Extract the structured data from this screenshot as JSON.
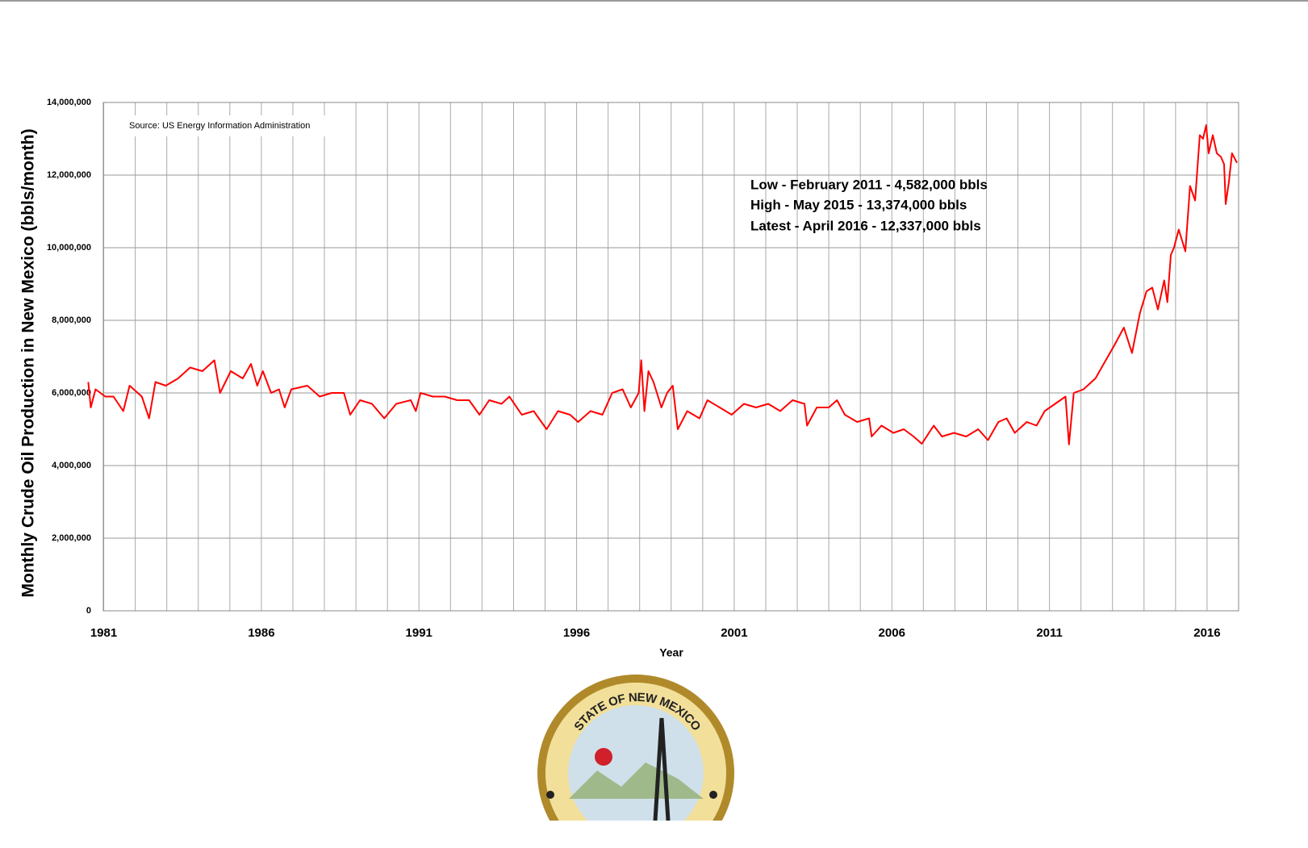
{
  "chart_data": {
    "type": "line",
    "y_label": "Monthly Crude Oil Production in New Mexico (bbls/month)",
    "x_label": "Year",
    "source": "Source: US Energy Information Administration",
    "annotations": [
      "Low - February 2011 - 4,582,000 bbls",
      "High - May 2015 - 13,374,000 bbls",
      "Latest - April 2016 - 12,337,000 bbls"
    ],
    "logo_text": "STATE OF NEW MEXICO",
    "color": "#ff0000",
    "grid": true,
    "xlim": [
      1980.5,
      2017
    ],
    "ylim": [
      0,
      14000000
    ],
    "xticks": [
      1981,
      1986,
      1991,
      1996,
      2001,
      2006,
      2011,
      2016
    ],
    "xgrid": [
      1981,
      1982,
      1983,
      1984,
      1985,
      1986,
      1987,
      1988,
      1989,
      1990,
      1991,
      1992,
      1993,
      1994,
      1995,
      1996,
      1997,
      1998,
      1999,
      2000,
      2001,
      2002,
      2003,
      2004,
      2005,
      2006,
      2007,
      2008,
      2009,
      2010,
      2011,
      2012,
      2013,
      2014,
      2015,
      2016,
      2017
    ],
    "yticks": [
      0,
      {
        "value": 2000000,
        "label": "2,000,000"
      },
      {
        "value": 4000000,
        "label": "4,000,000"
      },
      {
        "value": 6000000,
        "label": "6,000,000"
      },
      {
        "value": 8000000,
        "label": "8,000,000"
      },
      {
        "value": 10000000,
        "label": "10,000,000"
      },
      {
        "value": 12000000,
        "label": "12,000,000"
      },
      {
        "value": 14000000,
        "label": "14,000,000"
      }
    ],
    "x": [
      1980.51,
      1980.59,
      1980.74,
      1981.05,
      1981.31,
      1981.62,
      1981.82,
      1982.21,
      1982.44,
      1982.64,
      1982.97,
      1983.36,
      1983.74,
      1984.13,
      1984.51,
      1984.69,
      1985.03,
      1985.41,
      1985.67,
      1985.87,
      1986.05,
      1986.31,
      1986.56,
      1986.74,
      1986.95,
      1987.46,
      1987.85,
      1988.23,
      1988.62,
      1988.82,
      1989.13,
      1989.51,
      1989.9,
      1990.28,
      1990.74,
      1990.9,
      1991.05,
      1991.44,
      1991.82,
      1992.21,
      1992.59,
      1992.92,
      1993.23,
      1993.62,
      1993.87,
      1994.26,
      1994.64,
      1995.05,
      1995.41,
      1995.79,
      1996.05,
      1996.44,
      1996.82,
      1997.13,
      1997.46,
      1997.72,
      1997.97,
      1998.05,
      1998.15,
      1998.28,
      1998.44,
      1998.69,
      1998.87,
      1999.05,
      1999.21,
      1999.51,
      1999.9,
      2000.15,
      2000.54,
      2000.92,
      2001.31,
      2001.69,
      2002.08,
      2002.46,
      2002.85,
      2003.23,
      2003.31,
      2003.62,
      2004.0,
      2004.26,
      2004.51,
      2004.9,
      2005.28,
      2005.36,
      2005.67,
      2006.05,
      2006.38,
      2006.69,
      2006.95,
      2007.33,
      2007.59,
      2007.97,
      2008.36,
      2008.74,
      2009.05,
      2009.38,
      2009.64,
      2009.9,
      2010.28,
      2010.59,
      2010.85,
      2011.18,
      2011.51,
      2011.62,
      2011.77,
      2012.08,
      2012.46,
      2012.72,
      2013.05,
      2013.36,
      2013.62,
      2013.87,
      2014.08,
      2014.26,
      2014.44,
      2014.64,
      2014.74,
      2014.85,
      2014.95,
      2015.1,
      2015.31,
      2015.46,
      2015.62,
      2015.77,
      2015.87,
      2015.97,
      2016.05,
      2016.18,
      2016.31,
      2016.44,
      2016.54,
      2016.59,
      2016.69,
      2016.79,
      2016.95
    ],
    "values": [
      6300000,
      5600000,
      6100000,
      5900000,
      5900000,
      5500000,
      6200000,
      5900000,
      5300000,
      6300000,
      6200000,
      6400000,
      6700000,
      6600000,
      6900000,
      6000000,
      6600000,
      6400000,
      6800000,
      6200000,
      6600000,
      6000000,
      6100000,
      5600000,
      6100000,
      6200000,
      5900000,
      6000000,
      6000000,
      5400000,
      5800000,
      5700000,
      5300000,
      5700000,
      5800000,
      5500000,
      6000000,
      5900000,
      5900000,
      5800000,
      5800000,
      5400000,
      5800000,
      5700000,
      5900000,
      5400000,
      5500000,
      5000000,
      5500000,
      5400000,
      5200000,
      5500000,
      5400000,
      6000000,
      6100000,
      5600000,
      6000000,
      6900000,
      5500000,
      6600000,
      6300000,
      5600000,
      6000000,
      6200000,
      5000000,
      5500000,
      5300000,
      5800000,
      5600000,
      5400000,
      5700000,
      5600000,
      5700000,
      5500000,
      5800000,
      5700000,
      5100000,
      5600000,
      5600000,
      5800000,
      5400000,
      5200000,
      5300000,
      4800000,
      5100000,
      4900000,
      5000000,
      4800000,
      4600000,
      5100000,
      4800000,
      4900000,
      4800000,
      5000000,
      4700000,
      5200000,
      5300000,
      4900000,
      5200000,
      5100000,
      5500000,
      5700000,
      5900000,
      4582000,
      6000000,
      6100000,
      6400000,
      6800000,
      7300000,
      7800000,
      7100000,
      8200000,
      8800000,
      8900000,
      8300000,
      9100000,
      8500000,
      9800000,
      10000000,
      10500000,
      9900000,
      11700000,
      11300000,
      13100000,
      13000000,
      13374000,
      12600000,
      13100000,
      12600000,
      12500000,
      12300000,
      11200000,
      11800000,
      12600000,
      12337000
    ]
  }
}
